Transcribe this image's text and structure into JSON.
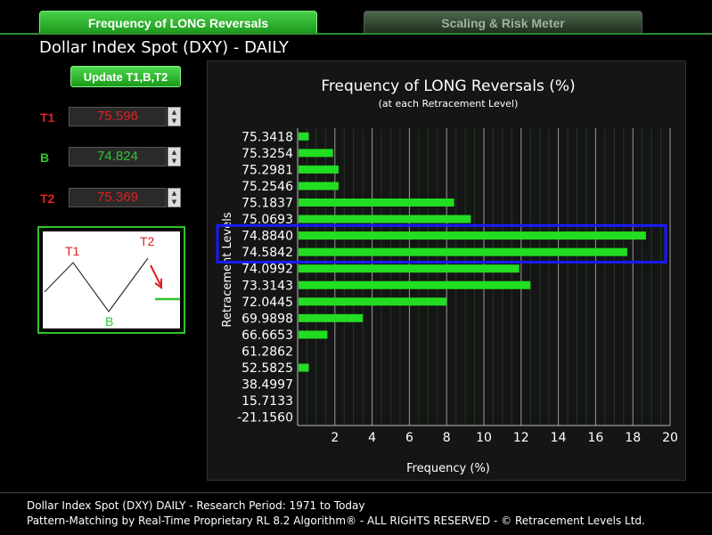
{
  "tabs": [
    {
      "label": "Frequency of LONG Reversals"
    },
    {
      "label": "Scaling & Risk Meter"
    }
  ],
  "page_title": "Dollar Index Spot (DXY) - DAILY",
  "update_button": "Update T1,B,T2",
  "levels": {
    "t1": {
      "label": "T1",
      "value": "75.596",
      "color": "#e02020"
    },
    "b": {
      "label": "B",
      "value": "74.824",
      "color": "#2ec52e"
    },
    "t2": {
      "label": "T2",
      "value": "75.369",
      "color": "#e02020"
    }
  },
  "pattern_diagram": {
    "t1": "T1",
    "b": "B",
    "t2": "T2"
  },
  "chart_data": {
    "type": "bar",
    "orientation": "horizontal",
    "title": "Frequency of LONG Reversals (%)",
    "subtitle": "(at each Retracement Level)",
    "xlabel": "Frequency (%)",
    "ylabel": "Retracement Levels",
    "xlim": [
      0,
      20
    ],
    "xticks": [
      "2",
      "4",
      "6",
      "8",
      "10",
      "12",
      "14",
      "16",
      "18",
      "20"
    ],
    "grid": true,
    "bar_color": "#22dd22",
    "highlight_color": "#1a1aff",
    "highlighted": [
      "74.8840",
      "74.5842"
    ],
    "categories": [
      "75.3418",
      "75.3254",
      "75.2981",
      "75.2546",
      "75.1837",
      "75.0693",
      "74.8840",
      "74.5842",
      "74.0992",
      "73.3143",
      "72.0445",
      "69.9898",
      "66.6653",
      "61.2862",
      "52.5825",
      "38.4997",
      "15.7133",
      "-21.1560"
    ],
    "values": [
      0.6,
      1.9,
      2.2,
      2.2,
      8.4,
      9.3,
      18.7,
      17.7,
      11.9,
      12.5,
      8.0,
      3.5,
      1.6,
      0,
      0.6,
      0,
      0,
      0
    ]
  },
  "footer": {
    "line1": "Dollar Index Spot (DXY) DAILY - Research Period: 1971 to Today",
    "line2": "Pattern-Matching by Real-Time Proprietary RL 8.2 Algorithm®  -  ALL RIGHTS RESERVED - © Retracement Levels Ltd."
  }
}
